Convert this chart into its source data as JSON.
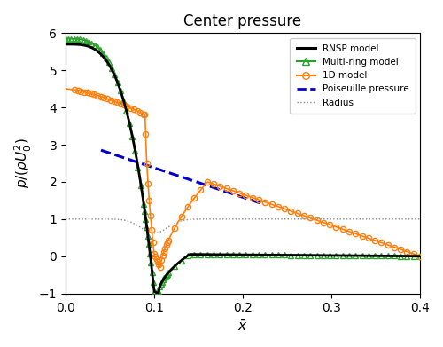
{
  "title": "Center pressure",
  "xlabel": "$\\bar{x}$",
  "ylabel": "$p/(\\rho U_0^2)$",
  "xlim": [
    0.0,
    0.4
  ],
  "ylim": [
    -1.0,
    6.0
  ],
  "xticks": [
    0.0,
    0.1,
    0.2,
    0.3,
    0.4
  ],
  "yticks": [
    -1,
    0,
    1,
    2,
    3,
    4,
    5,
    6
  ],
  "rnsp_color": "#000000",
  "multiring_color": "#2ca02c",
  "oned_color": "#ff7f0e",
  "poiseuille_color": "#0000cc",
  "radius_color": "#888888",
  "background_color": "#ffffff"
}
